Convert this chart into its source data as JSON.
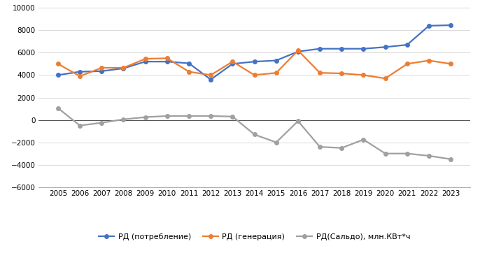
{
  "years": [
    2005,
    2006,
    2007,
    2008,
    2009,
    2010,
    2011,
    2012,
    2013,
    2014,
    2015,
    2016,
    2017,
    2018,
    2019,
    2020,
    2021,
    2022,
    2023
  ],
  "consumption": [
    4000,
    4300,
    4350,
    4600,
    5200,
    5200,
    5050,
    3600,
    5000,
    5200,
    5300,
    6100,
    6350,
    6350,
    6350,
    6500,
    6700,
    8400,
    8450
  ],
  "generation": [
    5000,
    3900,
    4650,
    4650,
    5450,
    5500,
    4300,
    4000,
    5200,
    4000,
    4200,
    6200,
    4200,
    4150,
    4000,
    3700,
    5000,
    5300,
    5000
  ],
  "saldo": [
    1050,
    -500,
    -250,
    50,
    250,
    350,
    350,
    350,
    300,
    -1300,
    -2000,
    -100,
    -2400,
    -2500,
    -1750,
    -3000,
    -3000,
    -3200,
    -3500
  ],
  "consumption_color": "#4472c4",
  "generation_color": "#ed7d31",
  "saldo_color": "#a0a0a0",
  "ylim_min": -6000,
  "ylim_max": 10000,
  "yticks": [
    -6000,
    -4000,
    -2000,
    0,
    2000,
    4000,
    6000,
    8000,
    10000
  ],
  "legend_consumption": "РД (потребление)",
  "legend_generation": "РД (генерация)",
  "legend_saldo": "РД(Сальдо), млн.КВт*ч",
  "marker": "o",
  "markersize": 4,
  "linewidth": 1.6,
  "grid_color": "#d8d8d8",
  "zero_line_color": "#555555"
}
